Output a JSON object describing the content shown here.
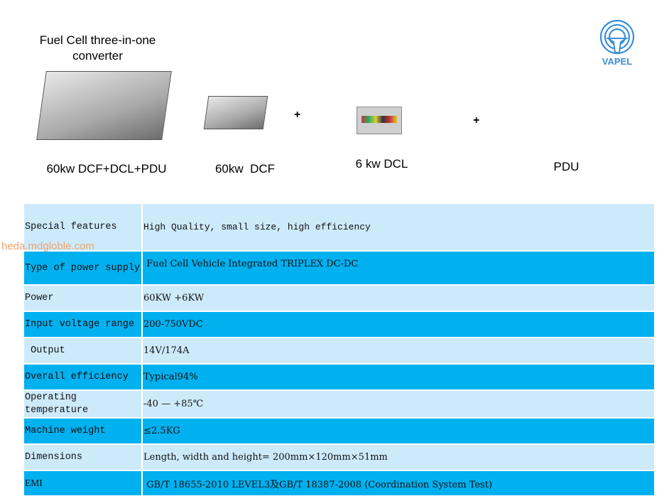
{
  "header": {
    "title": "Fuel Cell three-in-one converter",
    "logo_text": "VAPEL"
  },
  "products": [
    {
      "label": "60kw DCF+DCL+PDU"
    },
    {
      "label": "60kw  DCF"
    },
    {
      "label": "6 kw DCL"
    },
    {
      "label": "PDU"
    }
  ],
  "plus_sign": "+",
  "watermark": "heda.mdgloble.com",
  "specs": [
    {
      "key": "Special features",
      "value": "High Quality, small size, high efficiency"
    },
    {
      "key": "Type of power supply",
      "value": " Fuel Cell Vehicle Integrated TRIPLEX DC-DC"
    },
    {
      "key": "Power",
      "value": "60KW +6KW"
    },
    {
      "key": "Input voltage range",
      "value": "200-750VDC"
    },
    {
      "key": " Output",
      "value": "14V/174A"
    },
    {
      "key": "Overall efficiency",
      "value": "Typical94%"
    },
    {
      "key": "Operating temperature",
      "value": "-40 — +85℃"
    },
    {
      "key": "Machine weight",
      "value": "≤2.5KG"
    },
    {
      "key": "Dimensions",
      "value": "Length, width and height= 200mm×120mm×51mm"
    },
    {
      "key": "EMI",
      "value": " GB/T 18655-2010 LEVEL3及GB/T 18387-2008 (Coordination System Test)"
    }
  ],
  "colors": {
    "row_light": "#cdeafb",
    "row_dark": "#00b0ef",
    "logo": "#3a8fd8",
    "watermark": "#f0a470"
  }
}
